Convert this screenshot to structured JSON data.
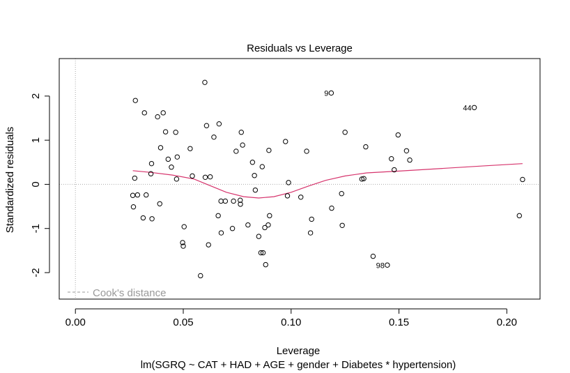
{
  "chart_data": {
    "type": "scatter",
    "title": "Residuals vs Leverage",
    "xlabel": "Leverage",
    "ylabel": "Standardized residuals",
    "subtitle": "lm(SGRQ ~ CAT + HAD + AGE + gender + Diabetes * hypertension)",
    "xlim": [
      -0.0075,
      0.2154
    ],
    "ylim": [
      -2.6,
      2.85
    ],
    "x_ticks": [
      0.0,
      0.05,
      0.1,
      0.15,
      0.2
    ],
    "x_tick_labels": [
      "0.00",
      "0.05",
      "0.10",
      "0.15",
      "0.20"
    ],
    "y_ticks": [
      -2,
      -1,
      0,
      1,
      2
    ],
    "y_tick_labels": [
      "-2",
      "-1",
      "0",
      "1",
      "2"
    ],
    "legend": {
      "label": "Cook's distance",
      "position": "bottom-left",
      "color": "#999999"
    },
    "reference_lines": {
      "x": 0,
      "y": 0,
      "color": "#aaaaaa"
    },
    "smooth_color": "#d6336c",
    "point_labels": [
      {
        "label": "9",
        "x": 0.1186,
        "y": 2.07
      },
      {
        "label": "44",
        "x": 0.1849,
        "y": 1.74
      },
      {
        "label": "98",
        "x": 0.1446,
        "y": -1.83
      }
    ],
    "points": [
      [
        0.0266,
        -0.25
      ],
      [
        0.0269,
        -0.51
      ],
      [
        0.0275,
        0.14
      ],
      [
        0.0278,
        1.9
      ],
      [
        0.0288,
        -0.24
      ],
      [
        0.0314,
        -0.76
      ],
      [
        0.032,
        1.62
      ],
      [
        0.0328,
        -0.24
      ],
      [
        0.035,
        0.24
      ],
      [
        0.0353,
        0.47
      ],
      [
        0.0355,
        -0.78
      ],
      [
        0.0381,
        1.53
      ],
      [
        0.0391,
        -0.44
      ],
      [
        0.0395,
        0.83
      ],
      [
        0.0407,
        1.62
      ],
      [
        0.0418,
        1.19
      ],
      [
        0.043,
        0.57
      ],
      [
        0.0445,
        0.39
      ],
      [
        0.0465,
        1.18
      ],
      [
        0.0469,
        0.12
      ],
      [
        0.0472,
        0.62
      ],
      [
        0.0497,
        -1.32
      ],
      [
        0.05,
        -1.4
      ],
      [
        0.0504,
        -0.96
      ],
      [
        0.0532,
        0.81
      ],
      [
        0.0542,
        0.19
      ],
      [
        0.058,
        -2.07
      ],
      [
        0.06,
        2.31
      ],
      [
        0.0602,
        0.16
      ],
      [
        0.0608,
        1.33
      ],
      [
        0.0617,
        -1.37
      ],
      [
        0.0625,
        0.17
      ],
      [
        0.0642,
        1.07
      ],
      [
        0.0662,
        -0.71
      ],
      [
        0.0666,
        1.37
      ],
      [
        0.0675,
        -0.38
      ],
      [
        0.0676,
        -1.1
      ],
      [
        0.0695,
        -0.38
      ],
      [
        0.0728,
        -1.0
      ],
      [
        0.0733,
        -0.38
      ],
      [
        0.0745,
        0.75
      ],
      [
        0.0764,
        -0.36
      ],
      [
        0.0765,
        -0.45
      ],
      [
        0.0769,
        1.18
      ],
      [
        0.0775,
        0.89
      ],
      [
        0.08,
        -0.92
      ],
      [
        0.0821,
        0.5
      ],
      [
        0.083,
        0.2
      ],
      [
        0.0834,
        -0.13
      ],
      [
        0.085,
        -1.18
      ],
      [
        0.086,
        -1.55
      ],
      [
        0.0866,
        0.4
      ],
      [
        0.087,
        -1.55
      ],
      [
        0.0878,
        -0.98
      ],
      [
        0.0882,
        -1.82
      ],
      [
        0.0894,
        -0.92
      ],
      [
        0.0897,
        0.77
      ],
      [
        0.09,
        -0.71
      ],
      [
        0.0974,
        0.97
      ],
      [
        0.0983,
        -0.26
      ],
      [
        0.0988,
        0.04
      ],
      [
        0.1045,
        -0.29
      ],
      [
        0.1072,
        0.75
      ],
      [
        0.109,
        -1.1
      ],
      [
        0.1095,
        -0.79
      ],
      [
        0.1186,
        2.07
      ],
      [
        0.1188,
        -0.54
      ],
      [
        0.1234,
        -0.21
      ],
      [
        0.1237,
        -0.93
      ],
      [
        0.125,
        1.18
      ],
      [
        0.1328,
        0.12
      ],
      [
        0.1337,
        0.13
      ],
      [
        0.1346,
        0.85
      ],
      [
        0.138,
        -1.63
      ],
      [
        0.1446,
        -1.83
      ],
      [
        0.1465,
        0.58
      ],
      [
        0.1478,
        0.33
      ],
      [
        0.1496,
        1.12
      ],
      [
        0.1535,
        0.76
      ],
      [
        0.155,
        0.55
      ],
      [
        0.1849,
        1.74
      ],
      [
        0.2058,
        -0.71
      ],
      [
        0.2073,
        0.11
      ]
    ],
    "smooth": [
      [
        0.0266,
        0.31
      ],
      [
        0.035,
        0.27
      ],
      [
        0.045,
        0.21
      ],
      [
        0.055,
        0.12
      ],
      [
        0.062,
        -0.02
      ],
      [
        0.07,
        -0.18
      ],
      [
        0.078,
        -0.28
      ],
      [
        0.085,
        -0.31
      ],
      [
        0.092,
        -0.28
      ],
      [
        0.1,
        -0.18
      ],
      [
        0.108,
        -0.04
      ],
      [
        0.116,
        0.09
      ],
      [
        0.125,
        0.19
      ],
      [
        0.135,
        0.26
      ],
      [
        0.15,
        0.3
      ],
      [
        0.17,
        0.36
      ],
      [
        0.19,
        0.42
      ],
      [
        0.2073,
        0.47
      ]
    ]
  }
}
